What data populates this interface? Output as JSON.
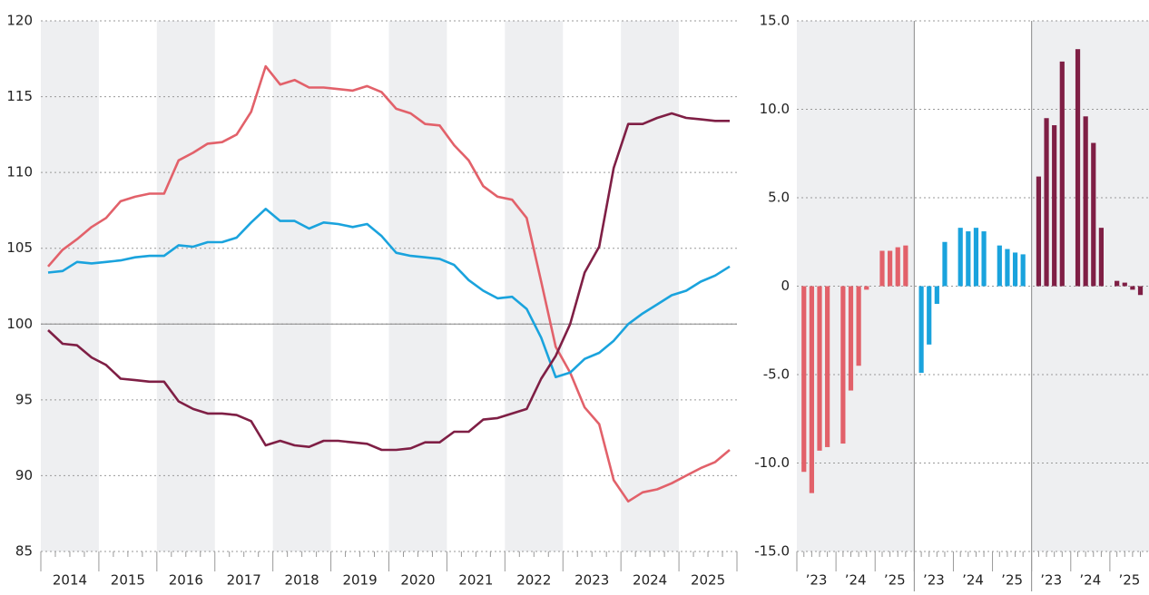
{
  "chart_data": [
    {
      "type": "line",
      "categories": [
        "2014",
        null,
        null,
        null,
        "2015",
        null,
        null,
        null,
        "2016",
        null,
        null,
        null,
        "2017",
        null,
        null,
        null,
        "2018",
        null,
        null,
        null,
        "2019",
        null,
        null,
        null,
        "2020",
        null,
        null,
        null,
        "2021",
        null,
        null,
        null,
        "2022",
        null,
        null,
        null,
        "2023",
        null,
        null,
        null,
        "2024",
        null,
        null,
        null,
        "2025",
        null,
        null,
        null
      ],
      "series": [
        {
          "color": "#e2616a",
          "values": [
            103.8,
            104.9,
            105.6,
            106.4,
            107.0,
            108.1,
            108.4,
            108.6,
            108.6,
            110.8,
            111.3,
            111.9,
            112.0,
            112.5,
            114.0,
            117.0,
            115.8,
            116.1,
            115.6,
            115.6,
            115.5,
            115.4,
            115.7,
            115.3,
            114.2,
            113.9,
            113.2,
            113.1,
            111.8,
            110.8,
            109.1,
            108.4,
            108.2,
            107.0,
            102.8,
            98.5,
            96.8,
            94.5,
            93.4,
            89.7,
            88.3,
            88.9,
            89.1,
            89.5,
            90.0,
            90.5,
            90.9,
            91.7
          ]
        },
        {
          "color": "#1aa3dd",
          "values": [
            103.4,
            103.5,
            104.1,
            104.0,
            104.1,
            104.2,
            104.4,
            104.5,
            104.5,
            105.2,
            105.1,
            105.4,
            105.4,
            105.7,
            106.7,
            107.6,
            106.8,
            106.8,
            106.3,
            106.7,
            106.6,
            106.4,
            106.6,
            105.8,
            104.7,
            104.5,
            104.4,
            104.3,
            103.9,
            102.9,
            102.2,
            101.7,
            101.8,
            101.0,
            99.1,
            96.5,
            96.8,
            97.7,
            98.1,
            98.9,
            100.0,
            100.7,
            101.3,
            101.9,
            102.2,
            102.8,
            103.2,
            103.8
          ]
        },
        {
          "color": "#7f1f45",
          "values": [
            99.6,
            98.7,
            98.6,
            97.8,
            97.3,
            96.4,
            96.3,
            96.2,
            96.2,
            94.9,
            94.4,
            94.1,
            94.1,
            94.0,
            93.6,
            92.0,
            92.3,
            92.0,
            91.9,
            92.3,
            92.3,
            92.2,
            92.1,
            91.7,
            91.7,
            91.8,
            92.2,
            92.2,
            92.9,
            92.9,
            93.7,
            93.8,
            94.1,
            94.4,
            96.4,
            97.9,
            100.0,
            103.4,
            105.1,
            110.3,
            113.2,
            113.2,
            113.6,
            113.9,
            113.6,
            113.5,
            113.4,
            113.4
          ]
        }
      ],
      "ylim": [
        85,
        120
      ],
      "yticks": [
        85,
        90,
        95,
        100,
        105,
        110,
        115,
        120
      ],
      "grid": true,
      "hline": 100
    },
    {
      "type": "bar",
      "categories": [
        "’23",
        null,
        null,
        null,
        "’24",
        null,
        null,
        null,
        "’25",
        null,
        null,
        null
      ],
      "series": [
        {
          "color": "#e2616a",
          "values": [
            -10.5,
            -11.7,
            -9.3,
            -9.1,
            -8.9,
            -5.9,
            -4.5,
            -0.2,
            2.0,
            2.0,
            2.2,
            2.3
          ]
        },
        {
          "color": "#1aa3dd",
          "values": [
            -4.9,
            -3.3,
            -1.0,
            2.5,
            3.3,
            3.1,
            3.3,
            3.1,
            2.3,
            2.1,
            1.9,
            1.8
          ]
        },
        {
          "color": "#7f1f45",
          "values": [
            6.2,
            9.5,
            9.1,
            12.7,
            13.4,
            9.6,
            8.1,
            3.3,
            0.3,
            0.2,
            -0.2,
            -0.5
          ]
        }
      ],
      "ylim": [
        -15,
        15
      ],
      "yticks": [
        {
          "value": -15,
          "label": "-15.0"
        },
        {
          "value": -10,
          "label": "-10.0"
        },
        {
          "value": -5,
          "label": "-5.0"
        },
        0,
        {
          "value": 5,
          "label": "5.0"
        },
        {
          "value": 10,
          "label": "10.0"
        },
        {
          "value": 15,
          "label": "15.0"
        }
      ],
      "grid": true
    }
  ]
}
